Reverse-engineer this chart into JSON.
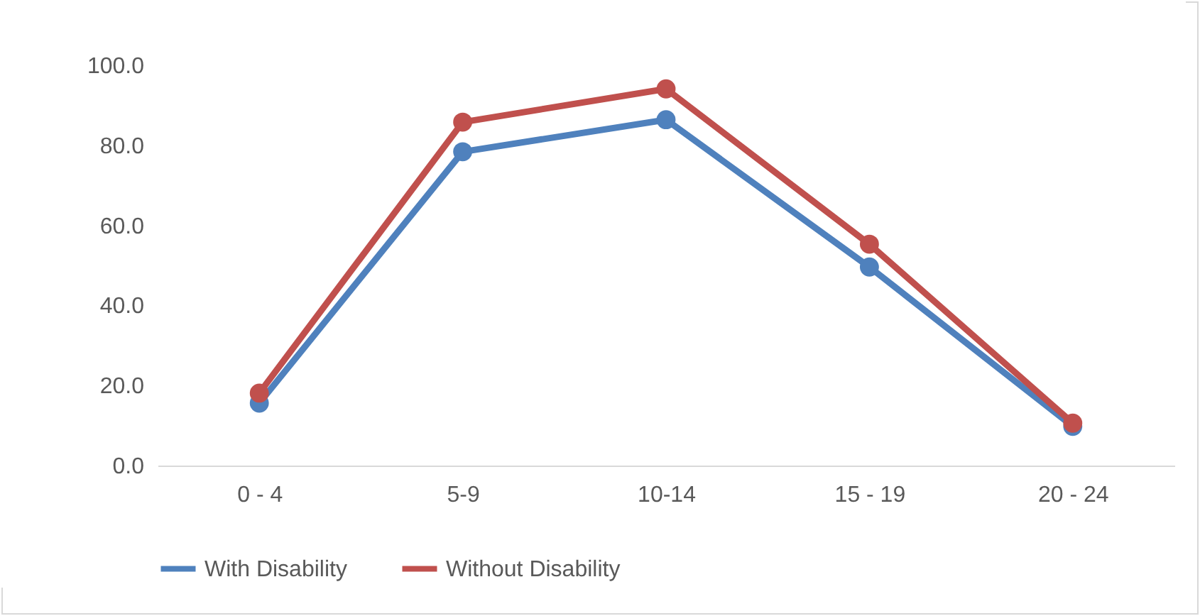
{
  "chart_data": {
    "type": "line",
    "categories": [
      "0 - 4",
      "5-9",
      "10-14",
      "15 - 19",
      "20 - 24"
    ],
    "series": [
      {
        "name": "With Disability",
        "color": "#4f81bd",
        "values": [
          15.6,
          78.4,
          86.4,
          49.6,
          9.8
        ]
      },
      {
        "name": "Without Disability",
        "color": "#c0504d",
        "values": [
          18.1,
          85.8,
          94.1,
          55.3,
          10.6
        ]
      }
    ],
    "ylim": [
      0,
      100
    ],
    "yticks": [
      {
        "value": 0,
        "label": "0.0"
      },
      {
        "value": 20,
        "label": "20.0"
      },
      {
        "value": 40,
        "label": "40.0"
      },
      {
        "value": 60,
        "label": "60.0"
      },
      {
        "value": 80,
        "label": "80.0"
      },
      {
        "value": 100,
        "label": "100.0"
      }
    ],
    "grid": false,
    "legend": "bottom",
    "marker": "circle",
    "line_style": "solid"
  }
}
